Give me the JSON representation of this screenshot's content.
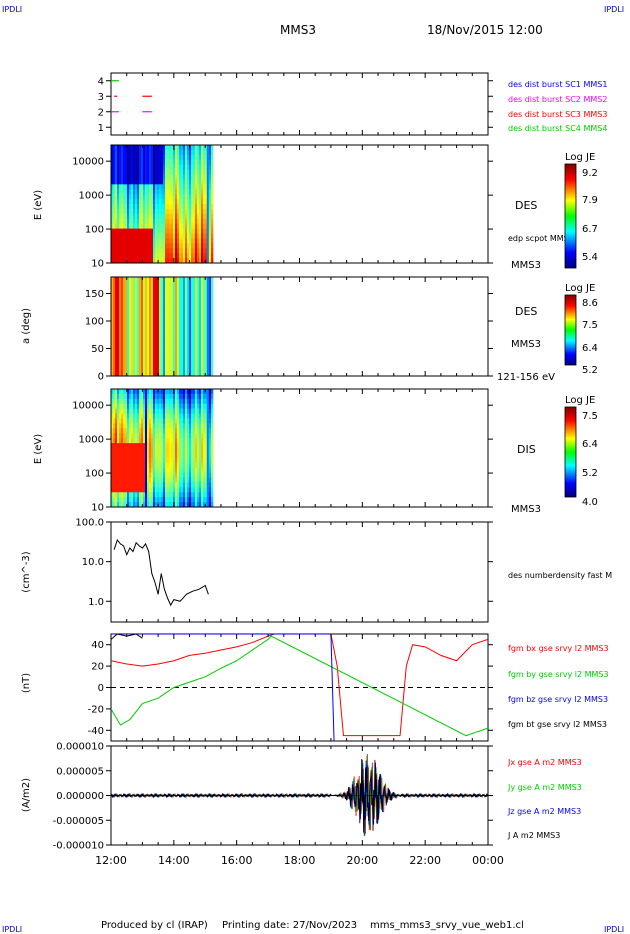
{
  "corner_labels": {
    "top_left": "IPDLI",
    "top_right": "IPDLI",
    "bottom_left": "IPDLI",
    "bottom_right": "IPDLI"
  },
  "header": {
    "spacecraft": "MMS3",
    "datetime": "18/Nov/2015 12:00"
  },
  "footer": {
    "produced_by": "Produced by cl (IRAP)",
    "printing_date": "Printing date: 27/Nov/2023",
    "filename": "mms_mms3_srvy_vue_web1.cl"
  },
  "colors": {
    "blue": "#0000ff",
    "magenta": "#ff00ff",
    "red": "#ff0000",
    "green": "#00cc00",
    "black": "#000000"
  },
  "time_axis": {
    "tick_labels": [
      "12:00",
      "14:00",
      "16:00",
      "18:00",
      "20:00",
      "22:00",
      "00:00"
    ],
    "range_hours": [
      12,
      24
    ]
  },
  "chart_data": [
    {
      "type": "scatter",
      "panel": "burst",
      "yticks": [
        "1",
        "2",
        "3",
        "4"
      ],
      "ylim": [
        0.5,
        4.5
      ],
      "legend": [
        "des dist burst SC1 MMS1",
        "des dist burst SC2 MMS2",
        "des dist burst SC3 MMS3",
        "des dist burst SC4 MMS4"
      ],
      "segments": [
        {
          "sc": 4,
          "color": "green",
          "t": [
            12.0,
            12.25
          ]
        },
        {
          "sc": 3,
          "color": "red",
          "t": [
            12.1,
            12.2
          ]
        },
        {
          "sc": 3,
          "color": "red",
          "t": [
            13.0,
            13.3
          ]
        },
        {
          "sc": 2,
          "color": "magenta",
          "t": [
            12.0,
            12.25
          ]
        },
        {
          "sc": 2,
          "color": "magenta",
          "t": [
            13.0,
            13.3
          ]
        }
      ]
    },
    {
      "type": "heatmap",
      "panel": "des_energy",
      "ylabel": "E (eV)",
      "yticks": [
        "10",
        "100",
        "1000",
        "10000"
      ],
      "ylim": [
        10,
        30000
      ],
      "label": "DES",
      "label2": "MMS3",
      "annotation": "edp scpot MMS3",
      "data_end_hour": 15.2,
      "colorbar": {
        "title": "Log JE",
        "ticks": [
          "9.2",
          "7.9",
          "6.7",
          "5.4"
        ]
      }
    },
    {
      "type": "heatmap",
      "panel": "des_pitch",
      "ylabel": "a (deg)",
      "yticks": [
        "0",
        "50",
        "100",
        "150"
      ],
      "ylim": [
        0,
        180
      ],
      "label": "DES",
      "label2": "MMS3",
      "energy_range": "121-156 eV",
      "data_end_hour": 15.2,
      "colorbar": {
        "title": "Log JE",
        "ticks": [
          "8.6",
          "7.5",
          "6.4",
          "5.2"
        ]
      }
    },
    {
      "type": "heatmap",
      "panel": "dis_energy",
      "ylabel": "E (eV)",
      "yticks": [
        "10",
        "100",
        "1000",
        "10000"
      ],
      "ylim": [
        10,
        30000
      ],
      "label": "DIS",
      "label2": "MMS3",
      "data_end_hour": 15.2,
      "colorbar": {
        "title": "Log JE",
        "ticks": [
          "7.5",
          "6.4",
          "5.2",
          "4.0"
        ]
      }
    },
    {
      "type": "line",
      "panel": "density",
      "ylabel": "(cm^-3)",
      "yticks": [
        "1.0",
        "10.0",
        "100.0"
      ],
      "ylim": [
        0.3,
        100
      ],
      "log": true,
      "legend": [
        "des numberdensity fast M"
      ],
      "series": [
        {
          "color": "black",
          "x": [
            12.1,
            12.2,
            12.3,
            12.4,
            12.5,
            12.6,
            12.7,
            12.8,
            12.9,
            13.0,
            13.1,
            13.2,
            13.3,
            13.4,
            13.5,
            13.6,
            13.7,
            13.8,
            13.9,
            14.0,
            14.2,
            14.4,
            14.6,
            14.8,
            15.0,
            15.1
          ],
          "y": [
            20,
            35,
            28,
            25,
            15,
            22,
            18,
            30,
            25,
            22,
            28,
            18,
            5,
            3,
            1.5,
            5,
            2,
            1.2,
            0.8,
            1.1,
            1.0,
            1.5,
            1.8,
            2.0,
            2.5,
            1.5
          ]
        }
      ]
    },
    {
      "type": "line",
      "panel": "fgm",
      "ylabel": "(nT)",
      "yticks": [
        "-40",
        "-20",
        "0",
        "20",
        "40"
      ],
      "ylim": [
        -50,
        50
      ],
      "legend": [
        "fgm bx gse srvy l2 MMS3",
        "fgm by gse srvy l2 MMS3",
        "fgm bz gse srvy l2 MMS3",
        "fgm bt gse srvy l2 MMS3"
      ],
      "series": [
        {
          "name": "bx",
          "color": "red",
          "x": [
            12.0,
            12.5,
            13.0,
            13.5,
            14.0,
            14.5,
            15.0,
            15.5,
            16.0,
            16.5,
            17.0,
            17.2,
            19.0,
            19.2,
            19.4,
            21.2,
            21.4,
            21.6,
            22.0,
            22.5,
            23.0,
            23.5,
            24.0
          ],
          "y": [
            25,
            22,
            20,
            22,
            25,
            30,
            32,
            35,
            38,
            42,
            48,
            50,
            50,
            20,
            -45,
            -45,
            20,
            40,
            38,
            30,
            25,
            40,
            45
          ]
        },
        {
          "name": "by",
          "color": "green",
          "x": [
            12.0,
            12.3,
            12.6,
            13.0,
            13.5,
            14.0,
            14.5,
            15.0,
            15.5,
            16.0,
            16.5,
            17.0,
            17.1,
            23.3,
            23.6,
            24.0
          ],
          "y": [
            -20,
            -35,
            -30,
            -15,
            -10,
            0,
            5,
            10,
            18,
            25,
            35,
            45,
            48,
            -45,
            -42,
            -38
          ]
        },
        {
          "name": "bz",
          "color": "blue",
          "x": [
            12.0,
            13.0,
            14.0,
            15.0,
            16.0,
            17.0,
            19.0,
            19.1,
            19.2
          ],
          "y": [
            50,
            50,
            50,
            50,
            50,
            50,
            50,
            -50,
            -50
          ]
        },
        {
          "name": "bt",
          "color": "black",
          "x": [
            12.0,
            12.2,
            12.5,
            12.8,
            13.0
          ],
          "y": [
            45,
            50,
            48,
            50,
            46
          ]
        }
      ]
    },
    {
      "type": "line",
      "panel": "current",
      "ylabel": "(A/m2)",
      "yticks": [
        "-0.000010",
        "-0.000005",
        "0.000000",
        "0.000005",
        "0.000010"
      ],
      "ylim": [
        -1e-05,
        1e-05
      ],
      "legend": [
        "Jx gse A m2 MMS3",
        "Jy gse A m2 MMS3",
        "Jz gse A m2 MMS3",
        "J A m2 MMS3"
      ],
      "series": [
        {
          "name": "Jx",
          "color": "red",
          "note": "burst between 19:00 and 21:00"
        },
        {
          "name": "Jy",
          "color": "green"
        },
        {
          "name": "Jz",
          "color": "blue"
        },
        {
          "name": "J",
          "color": "black"
        }
      ]
    }
  ]
}
